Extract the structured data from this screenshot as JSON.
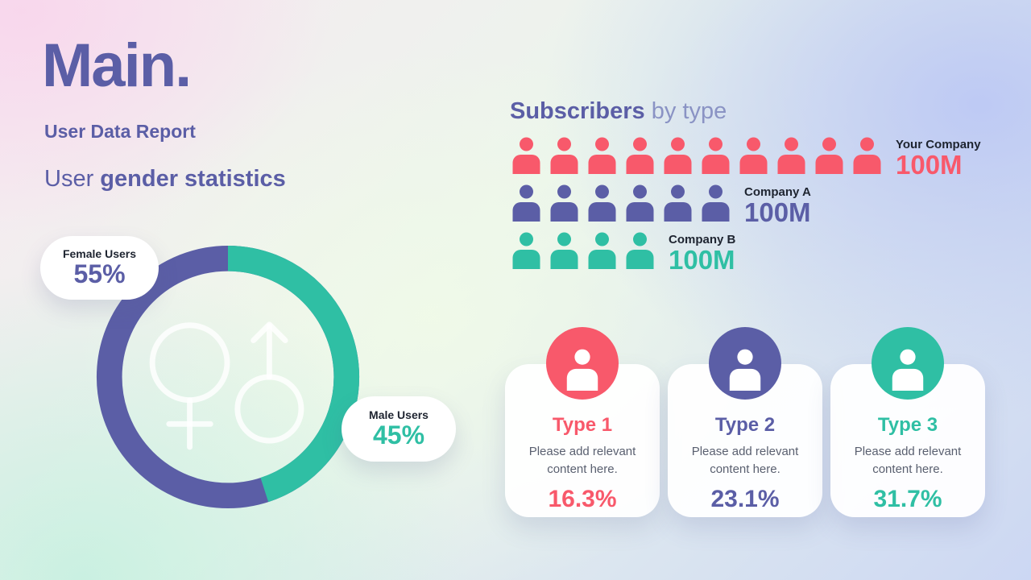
{
  "colors": {
    "purple": "#5b5ea6",
    "red": "#f8596b",
    "teal": "#2fbfa4",
    "dark": "#1e2430",
    "gray": "#5a6070"
  },
  "header": {
    "brand": "Main.",
    "subtitle": "User Data Report",
    "section_title_light": "User ",
    "section_title_bold": "gender statistics"
  },
  "donut": {
    "female_label": "Female Users",
    "female_value": "55%",
    "male_label": "Male Users",
    "male_value": "45%"
  },
  "subscribers": {
    "title_bold": "Subscribers",
    "title_light": " by type",
    "rows": [
      {
        "label": "Your Company",
        "value": "100M",
        "count": 10,
        "color": "#f8596b"
      },
      {
        "label": "Company A",
        "value": "100M",
        "count": 6,
        "color": "#5b5ea6"
      },
      {
        "label": "Company B",
        "value": "100M",
        "count": 4,
        "color": "#2fbfa4"
      }
    ]
  },
  "types": [
    {
      "title": "Type 1",
      "description": "Please add relevant content here.",
      "value": "16.3%",
      "color": "#f8596b"
    },
    {
      "title": "Type 2",
      "description": "Please add relevant content here.",
      "value": "23.1%",
      "color": "#5b5ea6"
    },
    {
      "title": "Type 3",
      "description": "Please add relevant content here.",
      "value": "31.7%",
      "color": "#2fbfa4"
    }
  ],
  "chart_data": [
    {
      "type": "pie",
      "style": "donut",
      "title": "User gender statistics",
      "labels": [
        "Female Users",
        "Male Users"
      ],
      "values": [
        55,
        45
      ],
      "colors": [
        "#5b5ea6",
        "#2fbfa4"
      ],
      "legend_position": "callout-bubbles"
    },
    {
      "type": "bar",
      "style": "pictogram",
      "title": "Subscribers by type",
      "categories": [
        "Your Company",
        "Company A",
        "Company B"
      ],
      "series": [
        {
          "name": "Subscribers",
          "values": [
            "100M",
            "100M",
            "100M"
          ]
        }
      ],
      "icon_counts": [
        10,
        6,
        4
      ],
      "colors": [
        "#f8596b",
        "#5b5ea6",
        "#2fbfa4"
      ]
    },
    {
      "type": "bar",
      "style": "stat-cards",
      "title": "Subscriber types share",
      "categories": [
        "Type 1",
        "Type 2",
        "Type 3"
      ],
      "values": [
        16.3,
        23.1,
        31.7
      ],
      "unit": "%",
      "colors": [
        "#f8596b",
        "#5b5ea6",
        "#2fbfa4"
      ]
    }
  ]
}
